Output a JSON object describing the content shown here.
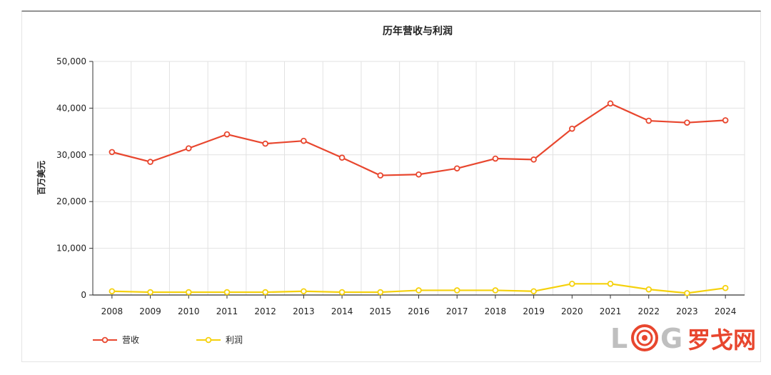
{
  "chart_data": {
    "type": "line",
    "title": "历年营收与利润",
    "xlabel": "",
    "ylabel": "百万美元",
    "categories": [
      "2008",
      "2009",
      "2010",
      "2011",
      "2012",
      "2013",
      "2014",
      "2015",
      "2016",
      "2017",
      "2018",
      "2019",
      "2020",
      "2021",
      "2022",
      "2023",
      "2024"
    ],
    "ylim": [
      0,
      50000
    ],
    "yticks": [
      0,
      10000,
      20000,
      30000,
      40000,
      50000
    ],
    "ytick_labels": [
      "0",
      "10,000",
      "20,000",
      "30,000",
      "40,000",
      "50,000"
    ],
    "grid": true,
    "legend_position": "bottom-left",
    "series": [
      {
        "name": "营收",
        "color": "#e8462e",
        "values": [
          30600,
          28500,
          31400,
          34400,
          32400,
          33000,
          29400,
          25600,
          25800,
          27100,
          29200,
          29000,
          35600,
          41000,
          37300,
          36900,
          37400
        ]
      },
      {
        "name": "利润",
        "color": "#f5d10c",
        "values": [
          800,
          600,
          600,
          600,
          600,
          800,
          600,
          600,
          1000,
          1000,
          1000,
          800,
          2400,
          2400,
          1200,
          400,
          1500
        ]
      }
    ]
  },
  "watermark": {
    "logo_text": "L◎G",
    "cn_text": "罗戈网"
  }
}
